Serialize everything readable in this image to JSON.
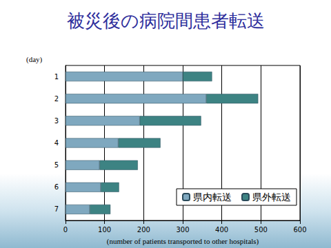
{
  "chart_data": {
    "type": "bar",
    "title": "被災後の病院間患者転送",
    "orientation": "horizontal",
    "stacked": true,
    "grid": true,
    "legend": "lower right",
    "y_label": "(day)",
    "x_label": "(number of patients transported to other hospitals)",
    "categories": [
      "1",
      "2",
      "3",
      "4",
      "5",
      "6",
      "7"
    ],
    "series": [
      {
        "name": "県内転送",
        "color": "#7fa8bf",
        "values": [
          300,
          360,
          190,
          135,
          87,
          90,
          62
        ]
      },
      {
        "name": "県外転送",
        "color": "#3d8383",
        "values": [
          75,
          133,
          157,
          108,
          98,
          47,
          53
        ]
      }
    ],
    "xlim": [
      0,
      600
    ],
    "xticks": [
      0,
      100,
      200,
      300,
      400,
      500,
      600
    ]
  }
}
